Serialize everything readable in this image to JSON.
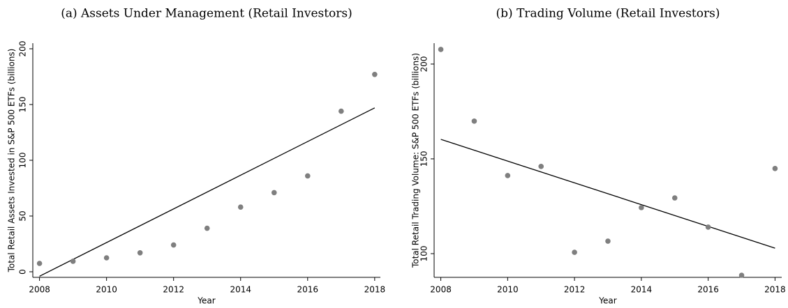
{
  "chart_data": [
    {
      "type": "scatter",
      "title": "(a) Assets Under Management (Retail Investors)",
      "x_label": "Year",
      "y_label": "Total Retail Assets Invested in S&P 500 ETFs (billions)",
      "x": [
        2008,
        2009,
        2010,
        2011,
        2012,
        2013,
        2014,
        2015,
        2016,
        2017,
        2018
      ],
      "series": [
        {
          "color": "#7f7f7f",
          "values": [
            7.5,
            9.4,
            12.5,
            17,
            24,
            39,
            58,
            71,
            86,
            144,
            177
          ]
        }
      ],
      "fit": {
        "color": "#000000",
        "x": [
          2008,
          2018
        ],
        "values": [
          -4,
          147
        ]
      },
      "xlim": [
        2007.8,
        2018.17
      ],
      "ylim": [
        -5,
        205
      ],
      "xticks": [
        2008,
        2010,
        2012,
        2014,
        2016,
        2018
      ],
      "yticks": [
        0,
        50,
        100,
        150,
        200
      ]
    },
    {
      "type": "scatter",
      "title": "(b) Trading Volume (Retail Investors)",
      "x_label": "Year",
      "y_label": "Total Retail Trading Volume: S&P 500 ETFs (billions)",
      "x": [
        2008,
        2009,
        2010,
        2011,
        2012,
        2013,
        2014,
        2015,
        2016,
        2017,
        2018
      ],
      "series": [
        {
          "color": "#7f7f7f",
          "values": [
            207.7,
            169.9,
            141.2,
            146,
            100.7,
            106.6,
            124.3,
            129.4,
            114,
            88.6,
            144.9
          ]
        }
      ],
      "fit": {
        "color": "#000000",
        "x": [
          2008,
          2018
        ],
        "values": [
          160.3,
          102.9
        ]
      },
      "xlim": [
        2007.8,
        2018.2
      ],
      "ylim": [
        87.5,
        211
      ],
      "xticks": [
        2008,
        2010,
        2012,
        2014,
        2016,
        2018
      ],
      "yticks": [
        100,
        150,
        200
      ]
    }
  ]
}
